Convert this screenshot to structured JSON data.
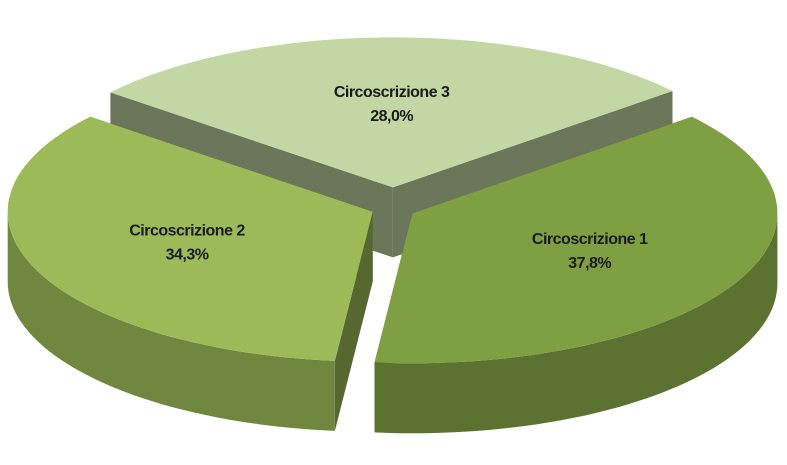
{
  "chart_data": {
    "type": "pie3d",
    "categories": [
      "Circoscrizione 1",
      "Circoscrizione 2",
      "Circoscrizione 3"
    ],
    "values": [
      37.8,
      34.3,
      28.0
    ],
    "value_labels": [
      "37,8%",
      "34,3%",
      "28,0%"
    ],
    "colors": [
      "#7f9f43",
      "#9cbb58",
      "#c3d7a4"
    ]
  }
}
